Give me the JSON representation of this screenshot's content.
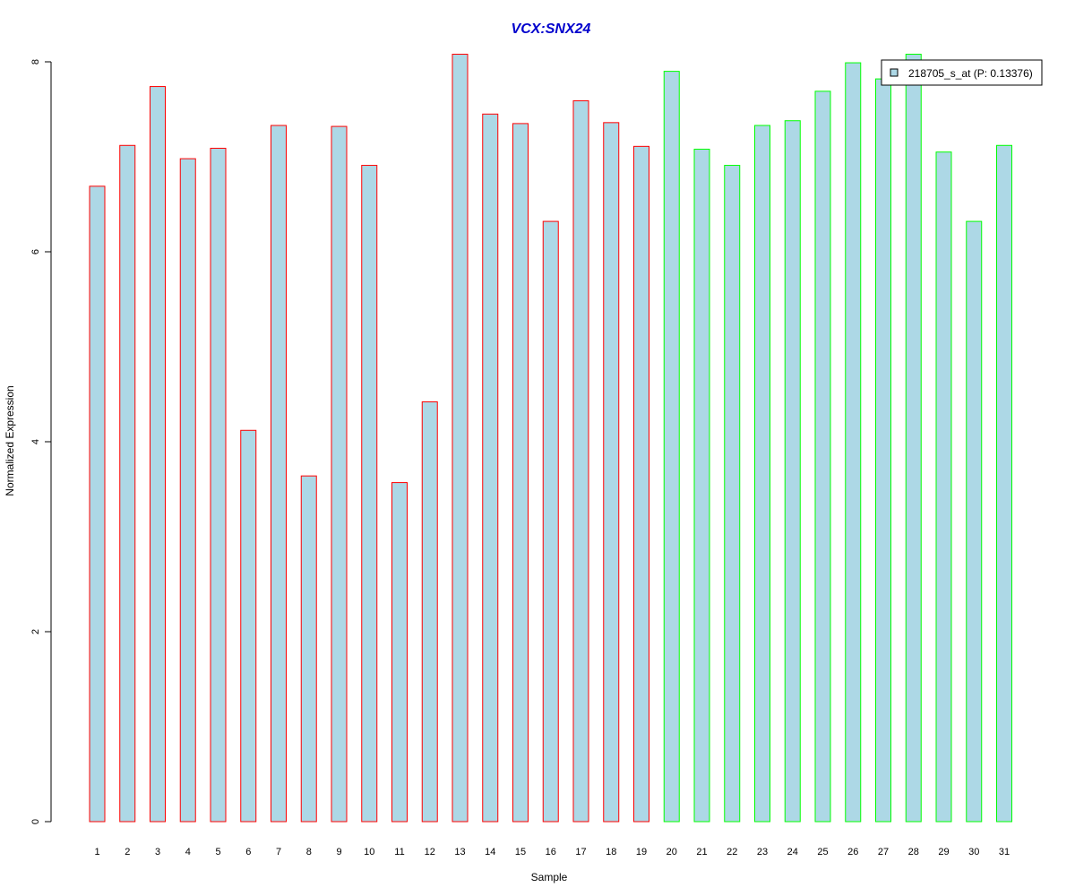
{
  "chart_data": {
    "type": "bar",
    "title": "VCX:SNX24",
    "xlabel": "Sample",
    "ylabel": "Normalized Expression",
    "ylim": [
      0,
      8
    ],
    "yticks": [
      "0",
      "2",
      "4",
      "6",
      "8"
    ],
    "categories": [
      "1",
      "2",
      "3",
      "4",
      "5",
      "6",
      "7",
      "8",
      "9",
      "10",
      "11",
      "12",
      "13",
      "14",
      "15",
      "16",
      "17",
      "18",
      "19",
      "20",
      "21",
      "22",
      "23",
      "24",
      "25",
      "26",
      "27",
      "28",
      "29",
      "30",
      "31"
    ],
    "series": [
      {
        "name": "218705_s_at (P: 0.13376)",
        "values": [
          6.69,
          7.12,
          7.74,
          6.98,
          7.09,
          4.12,
          7.33,
          3.64,
          7.32,
          6.91,
          3.57,
          4.42,
          8.08,
          7.45,
          7.35,
          6.32,
          7.59,
          7.36,
          7.11,
          7.9,
          7.08,
          6.91,
          7.33,
          7.38,
          7.69,
          7.99,
          7.82,
          8.08,
          7.05,
          6.32,
          7.12
        ]
      }
    ],
    "groups": [
      {
        "samples": [
          1,
          19
        ],
        "border_color": "#ff0000"
      },
      {
        "samples": [
          20,
          31
        ],
        "border_color": "#00ff00"
      }
    ],
    "fill_color": "#add8e6",
    "title_color": "#0000cd",
    "legend": {
      "position": "top-right",
      "swatch_color": "#add8e6"
    },
    "grid": false
  }
}
